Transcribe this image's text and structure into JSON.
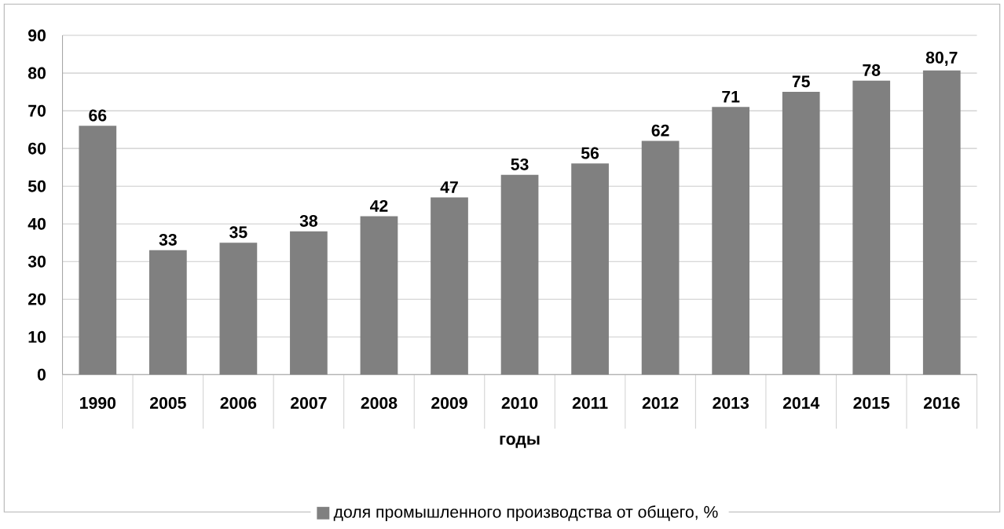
{
  "chart_data": {
    "type": "bar",
    "xlabel": "годы",
    "categories": [
      "1990",
      "2005",
      "2006",
      "2007",
      "2008",
      "2009",
      "2010",
      "2011",
      "2012",
      "2013",
      "2014",
      "2015",
      "2016"
    ],
    "series": [
      {
        "name": "доля промышленного производства от общего, %",
        "color": "#808080",
        "values": [
          66,
          33,
          35,
          38,
          42,
          47,
          53,
          56,
          62,
          71,
          75,
          78,
          80.7
        ],
        "value_labels": [
          "66",
          "33",
          "35",
          "38",
          "42",
          "47",
          "53",
          "56",
          "62",
          "71",
          "75",
          "78",
          "80,7"
        ]
      }
    ],
    "ylim": [
      0,
      90
    ],
    "yticks": [
      0,
      10,
      20,
      30,
      40,
      50,
      60,
      70,
      80,
      90
    ],
    "grid": "y",
    "legend": "bottom"
  }
}
